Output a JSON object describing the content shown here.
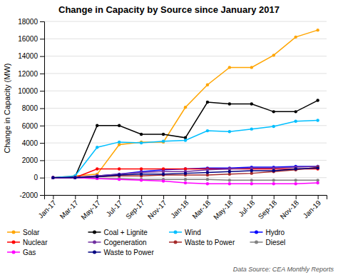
{
  "chart_data": {
    "type": "line",
    "title": "Change in Capacity by Source since January 2017",
    "ylabel": "Change in Capacity (MW)",
    "annotations": [
      "Data Source: CEA Monthly Reports"
    ],
    "categories": [
      "Jan-17",
      "Mar-17",
      "May-17",
      "Jul-17",
      "Sep-17",
      "Nov-17",
      "Jan-18",
      "Mar-18",
      "May-18",
      "Jul-18",
      "Sep-18",
      "Nov-18",
      "Jan-19"
    ],
    "series": [
      {
        "name": "Solar",
        "color": "#FFA500",
        "marker": "circle",
        "values": [
          0,
          200,
          400,
          3800,
          4100,
          4100,
          8100,
          10700,
          12700,
          12700,
          14100,
          16200,
          17000
        ]
      },
      {
        "name": "Coal + Lignite",
        "color": "#000000",
        "marker": "circle",
        "values": [
          0,
          100,
          6000,
          6000,
          5000,
          5000,
          4600,
          8700,
          8500,
          8500,
          7600,
          7600,
          8900
        ]
      },
      {
        "name": "Wind",
        "color": "#00BFFF",
        "marker": "circle",
        "values": [
          0,
          200,
          3500,
          4100,
          4000,
          4200,
          4300,
          5400,
          5300,
          5600,
          5900,
          6500,
          6600
        ]
      },
      {
        "name": "Hydro",
        "color": "#0000FF",
        "marker": "circle",
        "values": [
          0,
          0,
          200,
          400,
          700,
          900,
          1000,
          1100,
          1100,
          1200,
          1200,
          1300,
          1300
        ]
      },
      {
        "name": "Nuclear",
        "color": "#FF0000",
        "marker": "circle",
        "values": [
          0,
          0,
          1000,
          1000,
          1000,
          1000,
          1000,
          1000,
          1000,
          1000,
          1000,
          1000,
          1000
        ]
      },
      {
        "name": "Cogeneration",
        "color": "#7030A0",
        "marker": "circle",
        "values": [
          0,
          50,
          200,
          400,
          600,
          700,
          700,
          900,
          1000,
          1100,
          1100,
          1200,
          1300
        ]
      },
      {
        "name": "Waste to Power",
        "color": "#A52A2A",
        "marker": "circle",
        "values": [
          0,
          0,
          100,
          200,
          200,
          300,
          300,
          300,
          400,
          500,
          700,
          900,
          1200
        ]
      },
      {
        "name": "Diesel",
        "color": "#808080",
        "marker": "circle",
        "values": [
          0,
          0,
          -100,
          -100,
          -200,
          -200,
          -200,
          -200,
          -300,
          -300,
          -300,
          -300,
          -300
        ]
      },
      {
        "name": "Gas",
        "color": "#FF00FF",
        "marker": "circle",
        "values": [
          0,
          0,
          -100,
          -200,
          -300,
          -400,
          -600,
          -700,
          -700,
          -700,
          -700,
          -700,
          -600
        ]
      },
      {
        "name": "Waste to Power",
        "color": "#000080",
        "marker": "circle",
        "values": [
          0,
          0,
          100,
          300,
          400,
          400,
          500,
          600,
          700,
          800,
          800,
          1000,
          1100
        ]
      }
    ],
    "ylim": [
      -2000,
      18000
    ],
    "yticks": [
      -2000,
      0,
      2000,
      4000,
      6000,
      8000,
      10000,
      12000,
      14000,
      16000,
      18000
    ],
    "grid": true,
    "legend": "bottom"
  }
}
